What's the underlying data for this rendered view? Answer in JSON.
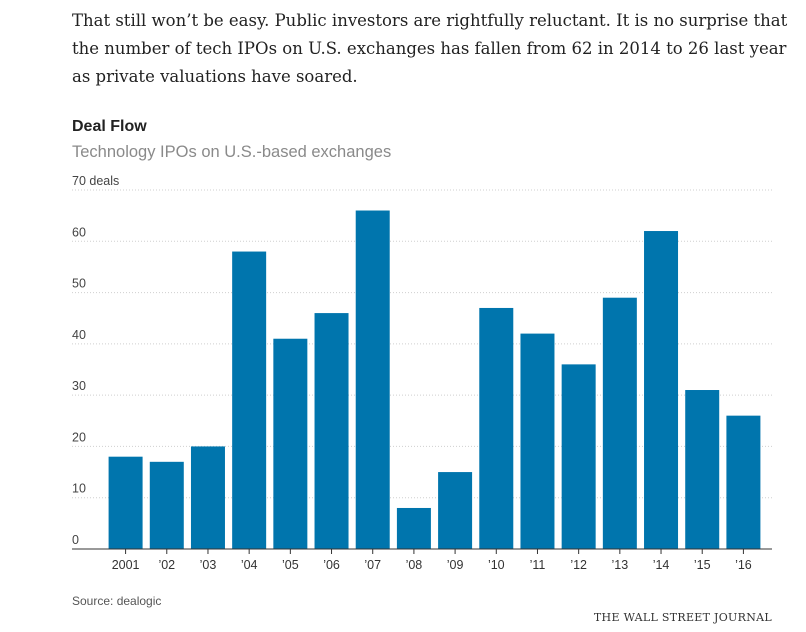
{
  "article": {
    "paragraph": "That still won’t be easy. Public investors are rightfully reluctant. It is no surprise that the number of tech IPOs on U.S. exchanges has fallen from 62 in 2014 to 26 last year as private valuations have soared."
  },
  "colors": {
    "bar": "#0075ad",
    "grid": "#cfcfcf",
    "axis": "#333333",
    "tick_text": "#333333"
  },
  "chart_data": {
    "type": "bar",
    "title": "Deal Flow",
    "subtitle": "Technology IPOs on U.S.-based exchanges",
    "categories": [
      "2001",
      "’02",
      "’03",
      "’04",
      "’05",
      "’06",
      "’07",
      "’08",
      "’09",
      "’10",
      "’11",
      "’12",
      "’13",
      "’14",
      "’15",
      "’16"
    ],
    "values": [
      18,
      17,
      20,
      58,
      41,
      46,
      66,
      8,
      15,
      47,
      42,
      36,
      49,
      62,
      31,
      26
    ],
    "ylim": [
      0,
      70
    ],
    "yticks": [
      0,
      10,
      20,
      30,
      40,
      50,
      60,
      70
    ],
    "ytick_labels": [
      "0",
      "10",
      "20",
      "30",
      "40",
      "50",
      "60",
      "70 deals"
    ],
    "grid": true,
    "xlabel": "",
    "ylabel": ""
  },
  "footer": {
    "source": "Source: dealogic",
    "credit": "THE WALL STREET JOURNAL"
  }
}
